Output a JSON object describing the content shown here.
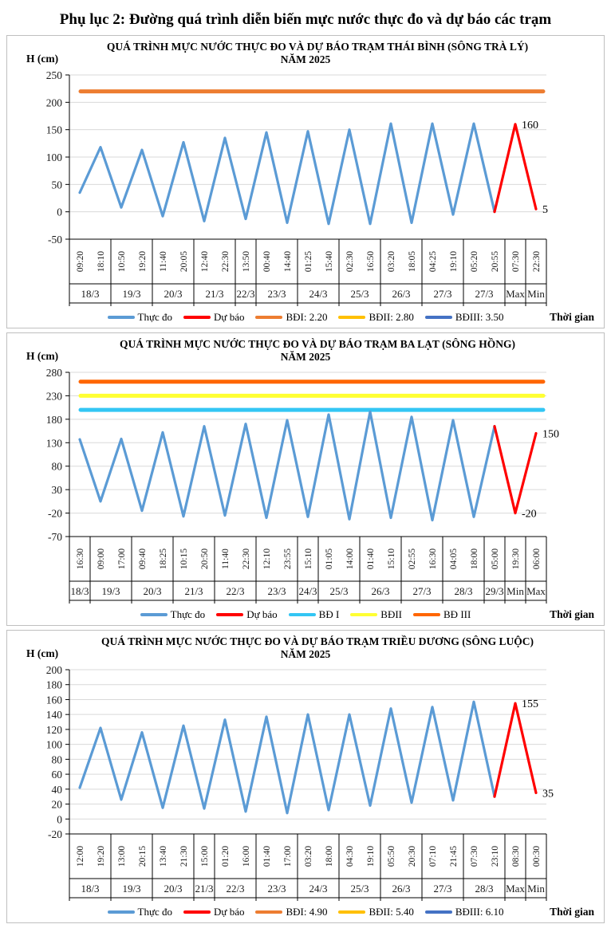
{
  "page": {
    "title": "Phụ lục 2: Đường quá trình diễn biến mực nước thực đo và dự báo các trạm"
  },
  "chart_data": [
    {
      "type": "line",
      "title": "QUÁ TRÌNH MỰC NƯỚC THỰC ĐO VÀ DỰ BÁO TRẠM THÁI BÌNH (SÔNG TRÀ LÝ)",
      "subtitle": "NĂM 2025",
      "y_axis_title": "H (cm)",
      "x_axis_title": "Thời gian",
      "grid": true,
      "legend_position": "bottom",
      "ylim": [
        -50,
        250
      ],
      "yticks": [
        250,
        200,
        150,
        100,
        50,
        0,
        -50
      ],
      "x_times": [
        "09:20",
        "18:10",
        "10:50",
        "19:20",
        "11:40",
        "20:05",
        "12:40",
        "22:30",
        "13:50",
        "00:40",
        "14:40",
        "01:25",
        "15:40",
        "02:30",
        "16:50",
        "03:20",
        "18:05",
        "04:25",
        "19:10",
        "05:20",
        "20:55",
        "07:30",
        "22:30"
      ],
      "date_groups": [
        {
          "label": "18/3",
          "span": 2
        },
        {
          "label": "19/3",
          "span": 2
        },
        {
          "label": "20/3",
          "span": 2
        },
        {
          "label": "21/3",
          "span": 2
        },
        {
          "label": "22/3",
          "span": 1
        },
        {
          "label": "23/3",
          "span": 2
        },
        {
          "label": "24/3",
          "span": 2
        },
        {
          "label": "25/3",
          "span": 2
        },
        {
          "label": "26/3",
          "span": 2
        },
        {
          "label": "27/3",
          "span": 2
        },
        {
          "label": "27/3",
          "span": 2
        },
        {
          "label": "Max",
          "span": 1
        },
        {
          "label": "Min",
          "span": 1
        }
      ],
      "series": [
        {
          "name": "Thực đo",
          "color": "#5B9BD5",
          "start_index": 0,
          "values": [
            35,
            118,
            8,
            113,
            -8,
            127,
            -17,
            135,
            -13,
            145,
            -20,
            147,
            -22,
            150,
            -22,
            161,
            -20,
            161,
            -5,
            161,
            0
          ]
        },
        {
          "name": "Dự báo",
          "color": "#FF0000",
          "start_index": 20,
          "values": [
            0,
            160,
            5
          ]
        }
      ],
      "alert_lines": [
        {
          "name": "BĐI",
          "value": 220,
          "color": "#ED7D31"
        }
      ],
      "point_labels": [
        {
          "x_index": 21,
          "value": 160,
          "text": "160"
        },
        {
          "x_index": 22,
          "value": 5,
          "text": "5"
        }
      ],
      "legend": [
        {
          "label": "Thực đo",
          "color": "#5B9BD5"
        },
        {
          "label": "Dự báo",
          "color": "#FF0000"
        },
        {
          "label": "BĐI: 2.20",
          "color": "#ED7D31"
        },
        {
          "label": "BĐII: 2.80",
          "color": "#FFC000"
        },
        {
          "label": "BĐIII: 3.50",
          "color": "#4472C4"
        }
      ]
    },
    {
      "type": "line",
      "title": "QUÁ TRÌNH MỰC NƯỚC THỰC ĐO VÀ DỰ BÁO TRẠM BA LẠT (SÔNG HỒNG)",
      "subtitle": "NĂM 2025",
      "y_axis_title": "H (cm)",
      "x_axis_title": "Thời gian",
      "grid": true,
      "legend_position": "bottom",
      "ylim": [
        -70,
        280
      ],
      "yticks": [
        280,
        230,
        180,
        130,
        80,
        30,
        -20,
        -70
      ],
      "x_times": [
        "16:30",
        "09:00",
        "17:00",
        "09:40",
        "18:25",
        "10:15",
        "20:50",
        "11:40",
        "22:30",
        "12:10",
        "23:55",
        "15:10",
        "01:05",
        "14:00",
        "01:40",
        "15:10",
        "02:55",
        "16:30",
        "04:05",
        "18:00",
        "05:00",
        "19:30",
        "06:00"
      ],
      "date_groups": [
        {
          "label": "18/3",
          "span": 1
        },
        {
          "label": "19/3",
          "span": 2
        },
        {
          "label": "20/3",
          "span": 2
        },
        {
          "label": "21/3",
          "span": 2
        },
        {
          "label": "22/3",
          "span": 2
        },
        {
          "label": "23/3",
          "span": 2
        },
        {
          "label": "24/3",
          "span": 1
        },
        {
          "label": "25/3",
          "span": 2
        },
        {
          "label": "26/3",
          "span": 2
        },
        {
          "label": "27/3",
          "span": 2
        },
        {
          "label": "28/3",
          "span": 2
        },
        {
          "label": "29/3",
          "span": 1
        },
        {
          "label": "Min",
          "span": 1
        },
        {
          "label": "Max",
          "span": 1
        }
      ],
      "series": [
        {
          "name": "Thực đo",
          "color": "#5B9BD5",
          "start_index": 0,
          "values": [
            137,
            5,
            138,
            -15,
            152,
            -27,
            165,
            -25,
            170,
            -30,
            178,
            -28,
            190,
            -33,
            196,
            -30,
            185,
            -35,
            178,
            -28,
            165
          ]
        },
        {
          "name": "Dự báo",
          "color": "#FF0000",
          "start_index": 20,
          "values": [
            165,
            -20,
            150
          ]
        }
      ],
      "alert_lines": [
        {
          "name": "BĐ I",
          "value": 200,
          "color": "#33C6F4"
        },
        {
          "name": "BĐII",
          "value": 230,
          "color": "#FFFF33"
        },
        {
          "name": "BĐ III",
          "value": 260,
          "color": "#FF6600"
        }
      ],
      "point_labels": [
        {
          "x_index": 22,
          "value": 150,
          "text": "150"
        },
        {
          "x_index": 21,
          "value": -20,
          "text": "-20"
        }
      ],
      "legend": [
        {
          "label": "Thực đo",
          "color": "#5B9BD5"
        },
        {
          "label": "Dự báo",
          "color": "#FF0000"
        },
        {
          "label": "BĐ I",
          "color": "#33C6F4"
        },
        {
          "label": "BĐII",
          "color": "#FFFF33"
        },
        {
          "label": "BĐ III",
          "color": "#FF6600"
        }
      ]
    },
    {
      "type": "line",
      "title": "QUÁ TRÌNH MỰC NƯỚC THỰC ĐO VÀ DỰ BÁO TRẠM TRIỀU DƯƠNG  (SÔNG LUỘC)",
      "subtitle": "NĂM 2025",
      "y_axis_title": "H (cm)",
      "x_axis_title": "Thời gian",
      "grid": true,
      "legend_position": "bottom",
      "ylim": [
        -20,
        200
      ],
      "yticks": [
        200,
        180,
        160,
        140,
        120,
        100,
        80,
        60,
        40,
        20,
        0,
        -20
      ],
      "x_times": [
        "12:00",
        "19:20",
        "13:00",
        "20:15",
        "13:40",
        "21:30",
        "15:00",
        "01:20",
        "16:00",
        "01:40",
        "17:00",
        "03:20",
        "18:00",
        "04:30",
        "19:10",
        "05:50",
        "20:30",
        "07:10",
        "21:45",
        "07:30",
        "23:10",
        "08:30",
        "00:30"
      ],
      "date_groups": [
        {
          "label": "18/3",
          "span": 2
        },
        {
          "label": "19/3",
          "span": 2
        },
        {
          "label": "20/3",
          "span": 2
        },
        {
          "label": "21/3",
          "span": 1
        },
        {
          "label": "22/3",
          "span": 2
        },
        {
          "label": "23/3",
          "span": 2
        },
        {
          "label": "24/3",
          "span": 2
        },
        {
          "label": "25/3",
          "span": 2
        },
        {
          "label": "26/3",
          "span": 2
        },
        {
          "label": "27/3",
          "span": 2
        },
        {
          "label": "28/3",
          "span": 2
        },
        {
          "label": "Max",
          "span": 1
        },
        {
          "label": "Min",
          "span": 1
        }
      ],
      "series": [
        {
          "name": "Thực đo",
          "color": "#5B9BD5",
          "start_index": 0,
          "values": [
            42,
            122,
            26,
            116,
            15,
            125,
            14,
            133,
            10,
            137,
            8,
            140,
            12,
            140,
            18,
            148,
            22,
            150,
            25,
            157,
            30
          ]
        },
        {
          "name": "Dự báo",
          "color": "#FF0000",
          "start_index": 20,
          "values": [
            30,
            155,
            35
          ]
        }
      ],
      "alert_lines": [],
      "point_labels": [
        {
          "x_index": 21,
          "value": 155,
          "text": "155"
        },
        {
          "x_index": 22,
          "value": 35,
          "text": "35"
        }
      ],
      "legend": [
        {
          "label": "Thực đo",
          "color": "#5B9BD5"
        },
        {
          "label": "Dự báo",
          "color": "#FF0000"
        },
        {
          "label": "BĐI: 4.90",
          "color": "#ED7D31"
        },
        {
          "label": "BĐII: 5.40",
          "color": "#FFC000"
        },
        {
          "label": "BĐIII: 6.10",
          "color": "#4472C4"
        }
      ]
    }
  ]
}
